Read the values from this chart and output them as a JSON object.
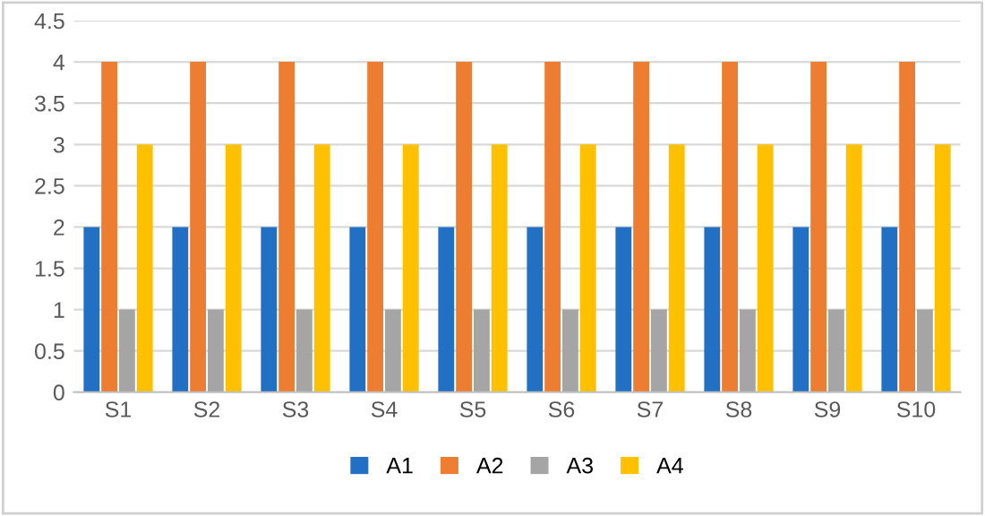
{
  "chart_data": {
    "type": "bar",
    "categories": [
      "S1",
      "S2",
      "S3",
      "S4",
      "S5",
      "S6",
      "S7",
      "S8",
      "S9",
      "S10"
    ],
    "series": [
      {
        "name": "A1",
        "color": "#2270c4",
        "values": [
          2,
          2,
          2,
          2,
          2,
          2,
          2,
          2,
          2,
          2
        ]
      },
      {
        "name": "A2",
        "color": "#ed7d31",
        "values": [
          4,
          4,
          4,
          4,
          4,
          4,
          4,
          4,
          4,
          4
        ]
      },
      {
        "name": "A3",
        "color": "#a5a5a5",
        "values": [
          1,
          1,
          1,
          1,
          1,
          1,
          1,
          1,
          1,
          1
        ]
      },
      {
        "name": "A4",
        "color": "#ffc000",
        "values": [
          3,
          3,
          3,
          3,
          3,
          3,
          3,
          3,
          3,
          3
        ]
      }
    ],
    "ylim": [
      0,
      4.5
    ],
    "yticks": [
      0,
      0.5,
      1,
      1.5,
      2,
      2.5,
      3,
      3.5,
      4,
      4.5
    ],
    "grid": "y",
    "legend": "bottom"
  }
}
